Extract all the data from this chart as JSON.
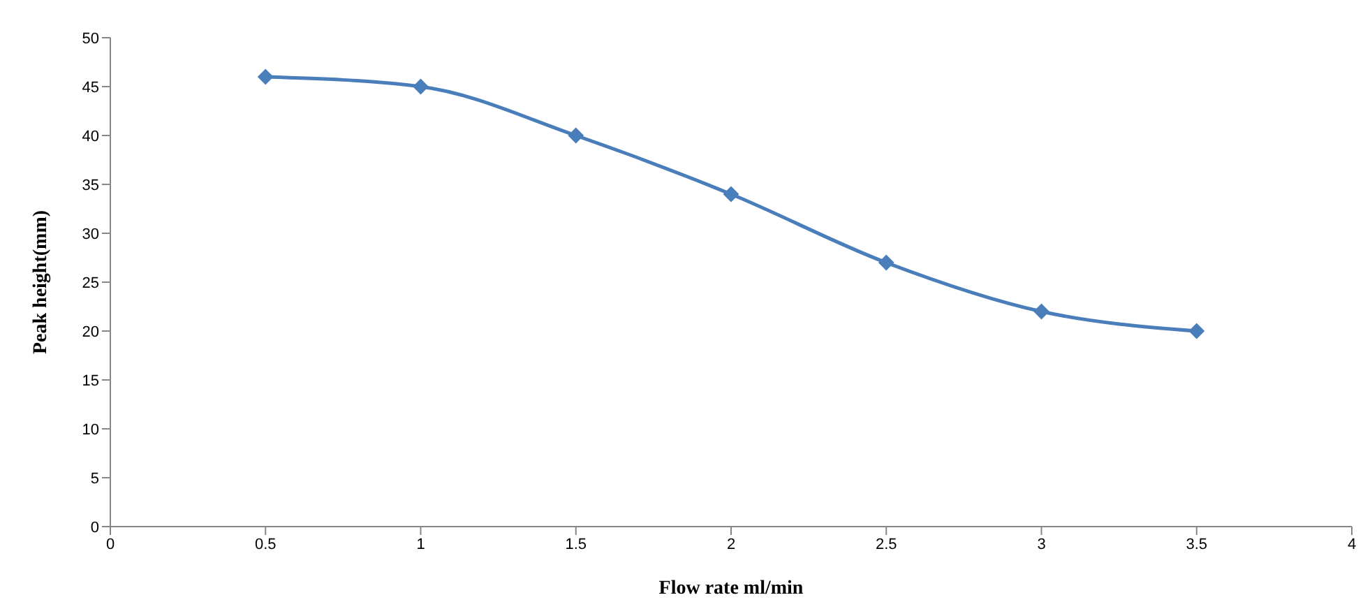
{
  "chart_data": {
    "type": "line",
    "xlabel": "Flow rate ml/min",
    "ylabel": "Peak height(mm)",
    "x": [
      0.5,
      1,
      1.5,
      2,
      2.5,
      3,
      3.5
    ],
    "series": [
      {
        "color": "#4a7ebb",
        "values": [
          46,
          45,
          40,
          34,
          27,
          22,
          20
        ]
      }
    ],
    "xlim": [
      0,
      4
    ],
    "xticks": [
      0,
      0.5,
      1,
      1.5,
      2,
      2.5,
      3,
      3.5,
      4
    ],
    "ylim": [
      0,
      50
    ],
    "yticks": [
      0,
      5,
      10,
      15,
      20,
      25,
      30,
      35,
      40,
      45,
      50
    ],
    "grid": false,
    "legend": false,
    "marker": "diamond",
    "line_style": "solid"
  }
}
